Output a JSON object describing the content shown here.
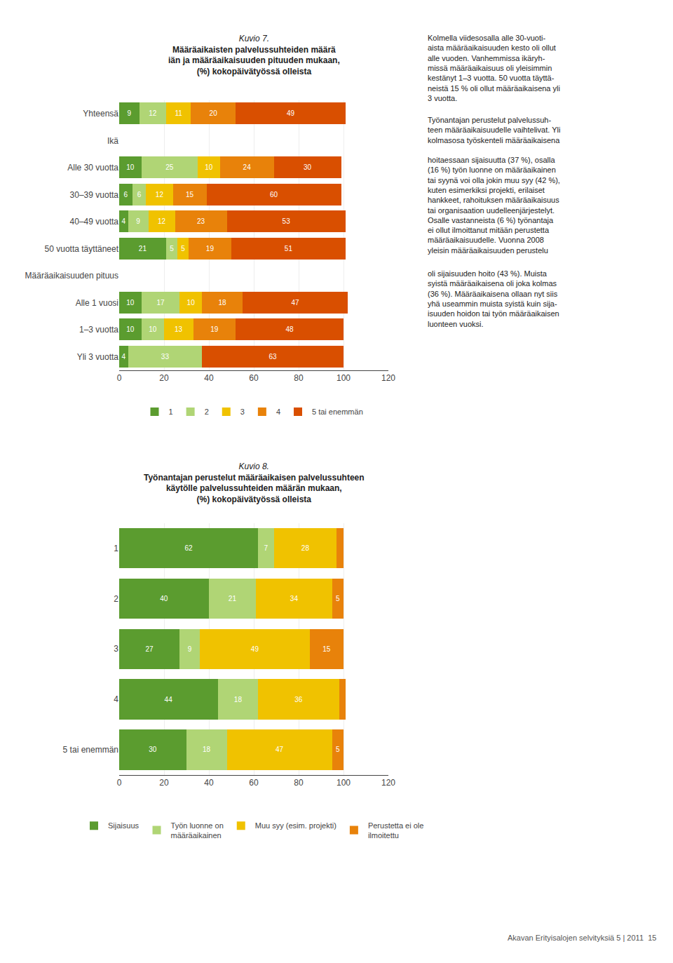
{
  "chart_data": [
    {
      "type": "bar",
      "orientation": "horizontal",
      "stacked": true,
      "title": "Kuvio 7.",
      "subtitle": "Määräaikaisten palvelussuhteiden määrä\niän ja määräaikaisuuden pituuden mukaan,\n(%) kokopäivätyössä olleista",
      "categories": [
        "Yhteensä",
        "Ikä",
        "Alle 30 vuotta",
        "30–39 vuotta",
        "40–49 vuotta",
        "50 vuotta täyttäneet",
        "Määräaikaisuuden pituus",
        "Alle 1 vuosi",
        "1–3 vuotta",
        "Yli 3 vuotta"
      ],
      "series": [
        {
          "name": "1",
          "color": "#5b9c2f",
          "values": [
            9,
            0,
            10,
            6,
            4,
            21,
            0,
            10,
            10,
            4
          ],
          "value_labels": [
            "9",
            null,
            "10",
            "6",
            "4",
            "21",
            null,
            "10",
            "10",
            "4"
          ]
        },
        {
          "name": "2",
          "color": "#b0d575",
          "values": [
            12,
            0,
            25,
            6,
            9,
            5,
            0,
            17,
            10,
            33
          ],
          "value_labels": [
            "12",
            null,
            "25",
            "6",
            "9",
            "5",
            null,
            "17",
            "10",
            "33"
          ]
        },
        {
          "name": "3",
          "color": "#f0c200",
          "values": [
            11,
            0,
            10,
            12,
            12,
            5,
            0,
            10,
            13,
            0
          ],
          "value_labels": [
            "11",
            null,
            "10",
            "12",
            "12",
            "5",
            null,
            "10",
            "13",
            null
          ]
        },
        {
          "name": "4",
          "color": "#e8820a",
          "values": [
            20,
            0,
            24,
            15,
            23,
            19,
            0,
            18,
            19,
            0
          ],
          "value_labels": [
            "20",
            null,
            "24",
            "15",
            "23",
            "19",
            null,
            "18",
            "19",
            null
          ]
        },
        {
          "name": "5 tai enemmän",
          "color": "#d94f00",
          "values": [
            49,
            0,
            30,
            60,
            53,
            51,
            0,
            47,
            48,
            63
          ],
          "value_labels": [
            "49",
            null,
            "30",
            "60",
            "53",
            "51",
            null,
            "47",
            "48",
            "63"
          ]
        }
      ],
      "xlim": [
        0,
        120
      ],
      "xticks": [
        0,
        20,
        40,
        60,
        80,
        100,
        120
      ],
      "grid": true,
      "legend": "bottom",
      "data_labels": true,
      "annotations": [
        "Kolmella viidesosalla alle 30-vuoti-\naista määräaikaisuuden kesto oli ollut\nalle vuoden. Vanhemmissa ikäryh-\nmissä määräaikaisuus oli yleisimmin\nkestänyt 1–3 vuotta. 50 vuotta täyttä-\nneistä 15 % oli ollut määräaikaisena yli\n3 vuotta.",
        "Työnantajan perustelut palvelussuh-\nteen määräaikaisuudelle vaihtelivat. Yli\nkolmasosa työskenteli määräaikaisena",
        "hoitaessaan sijaisuutta (37 %), osalla\n(16 %) työn luonne on määräaikainen\ntai syynä voi olla jokin muu syy (42 %),\nkuten esimerkiksi projekti, erilaiset\nhankkeet, rahoituksen määräaikaisuus\ntai organisaation uudelleenjärjestelyt.\nOsalle vastanneista (6 %) työnantaja\nei ollut ilmoittanut mitään perustetta\nmääräaikaisuudelle. Vuonna 2008\nyleisin määräaikaisuuden perustelu",
        "oli sijaisuuden hoito (43 %). Muista\nsyistä määräaikaisena oli joka kolmas\n(36 %). Määräaikaisena ollaan nyt siis\nyhä useammin muista syistä kuin sija-\nisuuden hoidon tai työn määräaikaisen\nluonteen vuoksi."
      ]
    },
    {
      "type": "bar",
      "orientation": "horizontal",
      "stacked": true,
      "title": "Kuvio 8.",
      "subtitle": "Työnantajan perustelut määräaikaisen palvelussuhteen\nkäytölle palvelussuhteiden määrän mukaan,\n(%) kokopäivätyössä olleista",
      "categories": [
        "1",
        "2",
        "3",
        "4",
        "5 tai enemmän"
      ],
      "series": [
        {
          "name": "Sijaisuus",
          "color": "#5b9c2f",
          "values": [
            62,
            40,
            27,
            44,
            30
          ],
          "value_labels": [
            "62",
            "40",
            "27",
            "44",
            "30"
          ]
        },
        {
          "name": "Työn luonne on\nmääräaikainen",
          "color": "#b0d575",
          "values": [
            7,
            21,
            9,
            18,
            18
          ],
          "value_labels": [
            "7",
            "21",
            "9",
            "18",
            "18"
          ]
        },
        {
          "name": "Muu syy (esim. projekti)",
          "color": "#f0c200",
          "values": [
            28,
            34,
            49,
            36,
            47
          ],
          "value_labels": [
            "28",
            "34",
            "49",
            "36",
            "47"
          ]
        },
        {
          "name": "Perustetta ei ole\nilmoitettu",
          "color": "#e8820a",
          "values": [
            3,
            5,
            15,
            3,
            5
          ],
          "value_labels": [
            null,
            "5",
            "15",
            null,
            "5"
          ]
        }
      ],
      "xlim": [
        0,
        120
      ],
      "xticks": [
        0,
        20,
        40,
        60,
        80,
        100,
        120
      ],
      "grid": true,
      "legend": "bottom",
      "data_labels": true,
      "annotations": [
        "Akavan Erityisalojen selvityksiä 5 | 2011  15"
      ]
    }
  ]
}
